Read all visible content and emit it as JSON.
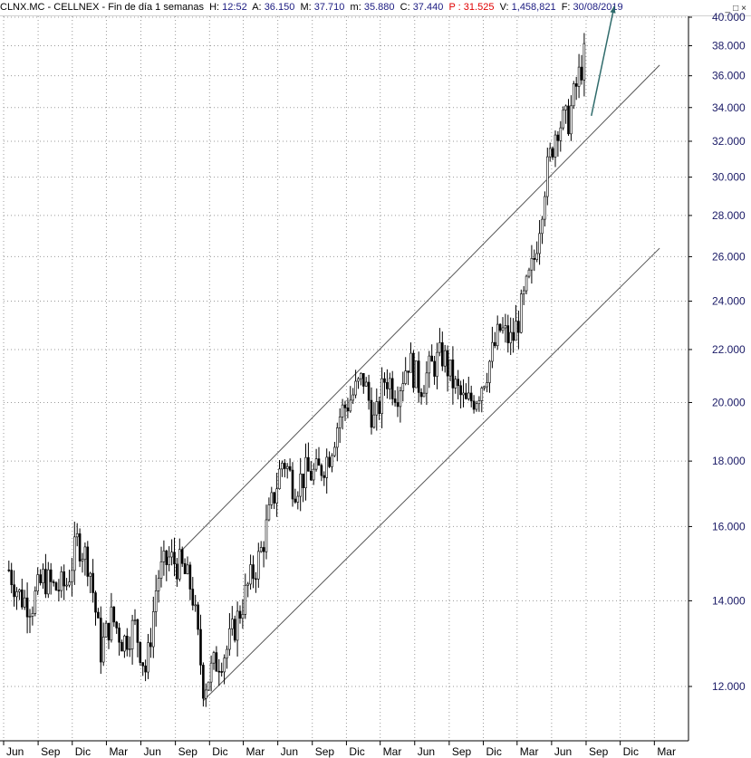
{
  "header": {
    "symbol": "CLNX.MC - CELLNEX - Fin de día 1 semanas",
    "h_label": "H:",
    "h_value": "12:52",
    "a_label": "A:",
    "a_value": "36.150",
    "m_label": "M:",
    "m_value": "37.710",
    "mm_label": "m:",
    "mm_value": "35.880",
    "c_label": "C:",
    "c_value": "37.440",
    "p_label": "P :",
    "p_value": "31.525",
    "v_label": "V:",
    "v_value": "1,458,821",
    "f_label": "F:",
    "f_value": "30/08/2019",
    "window_controls": "_□×"
  },
  "colors": {
    "price_axis_text": "#1a1a66",
    "candles": "#000000",
    "channel_lines": "#555555",
    "arrow": "#2f6b6b",
    "grid": "#9a9a9a",
    "header_blue": "#1a1a80",
    "header_red": "#e00000"
  },
  "chart_data": {
    "type": "candlestick",
    "title": "CLNX.MC - CELLNEX - Fin de día 1 semanas",
    "y_scale": "log",
    "ylim": [
      11.5,
      41
    ],
    "y_ticks": [
      12,
      14,
      16,
      18,
      20,
      22,
      24,
      26,
      28,
      30,
      32,
      34,
      36,
      38,
      40
    ],
    "y_tick_labels": [
      "12.000",
      "14.000",
      "16.000",
      "18.000",
      "20.000",
      "22.000",
      "24.000",
      "26.000",
      "28.000",
      "30.000",
      "32.000",
      "34.000",
      "36.000",
      "38.000",
      "40.000"
    ],
    "x_tick_labels": [
      "Jun",
      "Sep",
      "Dic",
      "Mar",
      "Jun",
      "Sep",
      "Dic",
      "Mar",
      "Jun",
      "Sep",
      "Dic",
      "Mar",
      "Jun",
      "Sep",
      "Dic",
      "Mar",
      "Jun",
      "Sep",
      "Dic",
      "Mar"
    ],
    "grid": true,
    "price_path": [
      [
        "2015-06",
        14.8
      ],
      [
        "2015-07",
        14.1
      ],
      [
        "2015-08",
        13.9
      ],
      [
        "2015-09",
        14.6
      ],
      [
        "2015-10",
        14.3
      ],
      [
        "2015-11",
        14.4
      ],
      [
        "2015-12",
        15.6
      ],
      [
        "2016-01",
        15.0
      ],
      [
        "2016-02",
        12.8
      ],
      [
        "2016-03",
        13.6
      ],
      [
        "2016-04",
        13.0
      ],
      [
        "2016-05",
        13.4
      ],
      [
        "2016-06",
        12.3
      ],
      [
        "2016-07",
        14.6
      ],
      [
        "2016-08",
        15.1
      ],
      [
        "2016-09",
        14.9
      ],
      [
        "2016-10",
        14.3
      ],
      [
        "2016-11",
        12.0
      ],
      [
        "2016-12",
        12.5
      ],
      [
        "2017-01",
        12.8
      ],
      [
        "2017-02",
        13.6
      ],
      [
        "2017-03",
        14.4
      ],
      [
        "2017-04",
        15.2
      ],
      [
        "2017-05",
        16.6
      ],
      [
        "2017-06",
        18.1
      ],
      [
        "2017-07",
        17.2
      ],
      [
        "2017-08",
        17.6
      ],
      [
        "2017-09",
        17.6
      ],
      [
        "2017-10",
        18.2
      ],
      [
        "2017-11",
        19.6
      ],
      [
        "2017-12",
        20.2
      ],
      [
        "2018-01",
        20.9
      ],
      [
        "2018-02",
        19.2
      ],
      [
        "2018-03",
        21.0
      ],
      [
        "2018-04",
        20.4
      ],
      [
        "2018-05",
        21.6
      ],
      [
        "2018-06",
        20.6
      ],
      [
        "2018-07",
        21.3
      ],
      [
        "2018-08",
        21.8
      ],
      [
        "2018-09",
        20.6
      ],
      [
        "2018-10",
        19.9
      ],
      [
        "2018-11",
        20.3
      ],
      [
        "2018-12",
        21.4
      ],
      [
        "2019-01",
        22.8
      ],
      [
        "2019-02",
        22.3
      ],
      [
        "2019-03",
        23.8
      ],
      [
        "2019-04",
        25.8
      ],
      [
        "2019-05",
        29.8
      ],
      [
        "2019-06",
        33.0
      ],
      [
        "2019-07",
        33.2
      ],
      [
        "2019-08",
        36.2
      ],
      [
        "2019-08-30",
        37.44
      ]
    ],
    "channel_upper": [
      [
        "2016-09",
        15.3
      ],
      [
        "2020-03",
        36.7
      ]
    ],
    "channel_lower": [
      [
        "2016-11",
        11.7
      ],
      [
        "2020-03",
        26.4
      ]
    ],
    "forecast_arrow": [
      [
        "2019-09",
        33.5
      ],
      [
        "2019-11",
        40.8
      ]
    ]
  }
}
